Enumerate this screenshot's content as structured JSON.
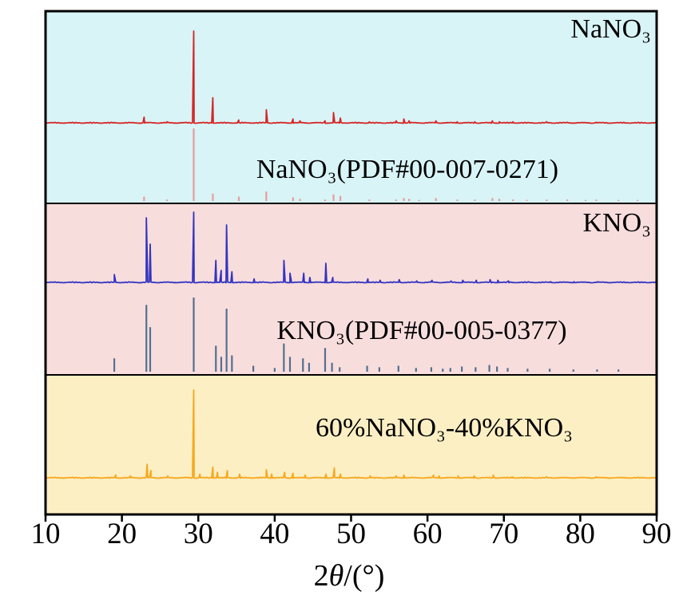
{
  "chart_data": {
    "type": "line",
    "title": "",
    "xlabel_parts": {
      "prefix": "2",
      "theta": "θ",
      "suffix": "/(°)"
    },
    "ylabel": "",
    "x_range": [
      10,
      90
    ],
    "x_ticks": [
      10,
      20,
      30,
      40,
      50,
      60,
      70,
      80,
      90
    ],
    "grid": false,
    "legend": "in-panel text labels",
    "panels": [
      {
        "label": "NaNO₃",
        "bg": "#d8f4f7",
        "series": [
          {
            "name": "NaNO3-measured-pattern",
            "style": "line",
            "color": "#d42626",
            "peaks": [
              [
                22.9,
                7
              ],
              [
                25.9,
                2
              ],
              [
                29.4,
                100
              ],
              [
                31.9,
                28
              ],
              [
                35.3,
                4
              ],
              [
                38.9,
                15
              ],
              [
                42.4,
                5
              ],
              [
                43.3,
                3
              ],
              [
                46.6,
                3
              ],
              [
                47.7,
                12
              ],
              [
                48.6,
                6
              ],
              [
                52.4,
                2
              ],
              [
                55.9,
                3
              ],
              [
                56.9,
                5
              ],
              [
                57.6,
                3
              ],
              [
                61.1,
                3
              ],
              [
                63.9,
                2
              ],
              [
                66.2,
                2
              ],
              [
                68.5,
                3
              ],
              [
                69.4,
                2
              ],
              [
                71.2,
                2
              ],
              [
                75.6,
                2
              ],
              [
                78.3,
                1.5
              ],
              [
                82.1,
                1.5
              ],
              [
                85.7,
                1.5
              ]
            ]
          },
          {
            "name": "NaNO3-reference-sticks",
            "label": "NaNO₃(PDF#00-007-0271)",
            "style": "sticks",
            "color": "#e89c9c",
            "peaks": [
              [
                22.9,
                6
              ],
              [
                25.9,
                2
              ],
              [
                29.4,
                100
              ],
              [
                31.9,
                10
              ],
              [
                35.3,
                6
              ],
              [
                38.9,
                13
              ],
              [
                42.4,
                5
              ],
              [
                43.3,
                3
              ],
              [
                46.6,
                2
              ],
              [
                47.7,
                9
              ],
              [
                48.6,
                7
              ],
              [
                52.4,
                2
              ],
              [
                55.9,
                2
              ],
              [
                56.9,
                4
              ],
              [
                57.6,
                3
              ],
              [
                58.9,
                1.5
              ],
              [
                61.1,
                4
              ],
              [
                63.9,
                2
              ],
              [
                66.2,
                2
              ],
              [
                68.5,
                4
              ],
              [
                69.4,
                3
              ],
              [
                71.2,
                2
              ],
              [
                73.0,
                1.5
              ],
              [
                75.6,
                2
              ],
              [
                78.3,
                2
              ],
              [
                80.7,
                1.5
              ],
              [
                82.1,
                2
              ],
              [
                85.0,
                1.5
              ],
              [
                87.5,
                1.5
              ]
            ]
          }
        ]
      },
      {
        "label": "KNO₃",
        "bg": "#f8dddd",
        "series": [
          {
            "name": "KNO3-measured-pattern",
            "style": "line",
            "color": "#3434bf",
            "peaks": [
              [
                19.0,
                12
              ],
              [
                23.2,
                92
              ],
              [
                23.7,
                55
              ],
              [
                29.4,
                100
              ],
              [
                32.3,
                32
              ],
              [
                33.0,
                18
              ],
              [
                33.7,
                82
              ],
              [
                34.4,
                16
              ],
              [
                37.3,
                6
              ],
              [
                41.2,
                32
              ],
              [
                42.0,
                14
              ],
              [
                43.8,
                14
              ],
              [
                44.6,
                8
              ],
              [
                46.7,
                28
              ],
              [
                47.6,
                8
              ],
              [
                52.2,
                6
              ],
              [
                53.8,
                4
              ],
              [
                56.3,
                5
              ],
              [
                58.6,
                3
              ],
              [
                60.6,
                4
              ],
              [
                63.1,
                3
              ],
              [
                64.6,
                4
              ],
              [
                66.4,
                4
              ],
              [
                68.2,
                5
              ],
              [
                69.2,
                4
              ],
              [
                70.6,
                3
              ],
              [
                73.2,
                2
              ],
              [
                76.1,
                2
              ],
              [
                79.2,
                2
              ],
              [
                82.3,
                2
              ]
            ]
          },
          {
            "name": "KNO3-reference-sticks",
            "label": "KNO₃(PDF#00-005-0377)",
            "style": "sticks",
            "color": "#54708e",
            "peaks": [
              [
                19.0,
                18
              ],
              [
                23.2,
                90
              ],
              [
                23.7,
                60
              ],
              [
                29.4,
                100
              ],
              [
                32.3,
                35
              ],
              [
                33.0,
                20
              ],
              [
                33.7,
                85
              ],
              [
                34.4,
                22
              ],
              [
                37.2,
                8
              ],
              [
                40.0,
                5
              ],
              [
                41.2,
                38
              ],
              [
                42.0,
                20
              ],
              [
                43.7,
                18
              ],
              [
                44.5,
                12
              ],
              [
                46.6,
                32
              ],
              [
                47.5,
                12
              ],
              [
                48.5,
                6
              ],
              [
                52.1,
                8
              ],
              [
                53.7,
                6
              ],
              [
                56.2,
                8
              ],
              [
                58.5,
                5
              ],
              [
                60.5,
                6
              ],
              [
                62.0,
                4
              ],
              [
                63.0,
                5
              ],
              [
                64.5,
                7
              ],
              [
                66.3,
                6
              ],
              [
                68.1,
                9
              ],
              [
                69.1,
                7
              ],
              [
                70.5,
                5
              ],
              [
                73.1,
                4
              ],
              [
                76.0,
                4
              ],
              [
                79.1,
                3
              ],
              [
                82.2,
                3
              ],
              [
                85.0,
                3
              ]
            ]
          }
        ]
      },
      {
        "label": "60%NaNO₃-40%KNO₃",
        "bg": "#fdefc4",
        "series": [
          {
            "name": "mixture-measured-pattern",
            "style": "line",
            "color": "#f7a71d",
            "peaks": [
              [
                19.2,
                4
              ],
              [
                21.1,
                3
              ],
              [
                23.3,
                16
              ],
              [
                23.8,
                9
              ],
              [
                26.0,
                3
              ],
              [
                29.4,
                100
              ],
              [
                30.2,
                5
              ],
              [
                31.9,
                13
              ],
              [
                32.5,
                7
              ],
              [
                33.8,
                9
              ],
              [
                35.4,
                5
              ],
              [
                38.9,
                10
              ],
              [
                39.6,
                5
              ],
              [
                41.3,
                7
              ],
              [
                42.4,
                6
              ],
              [
                44.0,
                4
              ],
              [
                46.7,
                5
              ],
              [
                47.8,
                12
              ],
              [
                48.6,
                5
              ],
              [
                52.5,
                3
              ],
              [
                55.9,
                3
              ],
              [
                56.9,
                4
              ],
              [
                60.8,
                4
              ],
              [
                61.5,
                3
              ],
              [
                64.0,
                3
              ],
              [
                66.1,
                3
              ],
              [
                68.6,
                4
              ],
              [
                71.1,
                2
              ],
              [
                75.6,
                2
              ],
              [
                82.1,
                2
              ]
            ]
          }
        ]
      }
    ]
  }
}
